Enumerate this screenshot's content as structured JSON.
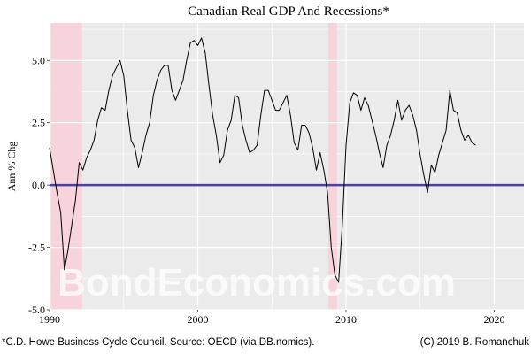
{
  "chart_data": {
    "type": "line",
    "title": "Canadian Real GDP And Recessions*",
    "ylabel": "Ann % Chg",
    "xlabel": "",
    "xlim": [
      1990,
      2022
    ],
    "ylim": [
      -5,
      6.5
    ],
    "x_ticks": [
      1990,
      2000,
      2010,
      2020
    ],
    "y_ticks": [
      -5,
      -2.5,
      0,
      2.5,
      5
    ],
    "y_tick_labels": [
      "-5.0",
      "-2.5",
      "0.0",
      "2.5",
      "5.0"
    ],
    "zero_line": {
      "y": 0,
      "color": "#4b3f9f"
    },
    "recessions": [
      {
        "start": 1990.1,
        "end": 1992.2
      },
      {
        "start": 2008.8,
        "end": 2009.4
      }
    ],
    "series": [
      {
        "color": "#000000",
        "x": [
          1990.0,
          1990.25,
          1990.5,
          1990.75,
          1991.0,
          1991.25,
          1991.5,
          1991.75,
          1992.0,
          1992.25,
          1992.5,
          1992.75,
          1993.0,
          1993.25,
          1993.5,
          1993.75,
          1994.0,
          1994.25,
          1994.5,
          1994.75,
          1995.0,
          1995.25,
          1995.5,
          1995.75,
          1996.0,
          1996.25,
          1996.5,
          1996.75,
          1997.0,
          1997.25,
          1997.5,
          1997.75,
          1998.0,
          1998.25,
          1998.5,
          1998.75,
          1999.0,
          1999.25,
          1999.5,
          1999.75,
          2000.0,
          2000.25,
          2000.5,
          2000.75,
          2001.0,
          2001.25,
          2001.5,
          2001.75,
          2002.0,
          2002.25,
          2002.5,
          2002.75,
          2003.0,
          2003.25,
          2003.5,
          2003.75,
          2004.0,
          2004.25,
          2004.5,
          2004.75,
          2005.0,
          2005.25,
          2005.5,
          2005.75,
          2006.0,
          2006.25,
          2006.5,
          2006.75,
          2007.0,
          2007.25,
          2007.5,
          2007.75,
          2008.0,
          2008.25,
          2008.5,
          2008.75,
          2009.0,
          2009.25,
          2009.5,
          2009.75,
          2010.0,
          2010.25,
          2010.5,
          2010.75,
          2011.0,
          2011.25,
          2011.5,
          2011.75,
          2012.0,
          2012.25,
          2012.5,
          2012.75,
          2013.0,
          2013.25,
          2013.5,
          2013.75,
          2014.0,
          2014.25,
          2014.5,
          2014.75,
          2015.0,
          2015.25,
          2015.5,
          2015.75,
          2016.0,
          2016.25,
          2016.5,
          2016.75,
          2017.0,
          2017.25,
          2017.5,
          2017.75,
          2018.0,
          2018.25,
          2018.5,
          2018.75
        ],
        "y": [
          1.5,
          0.6,
          -0.3,
          -1.1,
          -3.4,
          -2.6,
          -1.6,
          -0.6,
          0.9,
          0.6,
          1.1,
          1.4,
          1.8,
          2.6,
          3.1,
          3.0,
          3.8,
          4.4,
          4.7,
          5.0,
          4.4,
          3.0,
          1.8,
          1.5,
          0.7,
          1.3,
          2.0,
          2.5,
          3.6,
          4.2,
          4.6,
          4.8,
          4.8,
          3.8,
          3.4,
          3.8,
          4.2,
          5.0,
          5.7,
          5.8,
          5.6,
          5.9,
          5.3,
          4.0,
          2.8,
          2.0,
          0.9,
          1.2,
          2.2,
          2.6,
          3.6,
          3.5,
          2.4,
          1.8,
          1.3,
          1.4,
          1.6,
          2.8,
          3.8,
          3.8,
          3.4,
          3.0,
          3.0,
          3.3,
          3.6,
          2.8,
          1.7,
          1.4,
          2.4,
          2.4,
          2.1,
          1.5,
          0.6,
          1.3,
          0.6,
          -0.3,
          -2.5,
          -3.6,
          -3.9,
          -1.6,
          1.6,
          3.3,
          3.7,
          3.6,
          3.0,
          3.5,
          3.2,
          2.6,
          2.0,
          1.3,
          0.7,
          1.6,
          2.0,
          2.6,
          3.4,
          2.6,
          3.0,
          3.2,
          2.8,
          2.2,
          1.2,
          0.4,
          -0.3,
          0.8,
          0.5,
          1.2,
          1.7,
          2.2,
          3.8,
          3.0,
          2.9,
          2.2,
          1.8,
          2.0,
          1.7,
          1.6
        ]
      }
    ]
  },
  "watermark": "BondEconomics.com",
  "footer": {
    "left": "*C.D. Howe Business Cycle Council. Source: OECD (via DB.nomics).",
    "right": "(C) 2019 B. Romanchuk"
  },
  "colors": {
    "panel_bg": "#ebebeb",
    "grid": "#ffffff",
    "recession_fill": "#f7d4dc",
    "line": "#000000",
    "zero_line": "#4b3f9f"
  }
}
